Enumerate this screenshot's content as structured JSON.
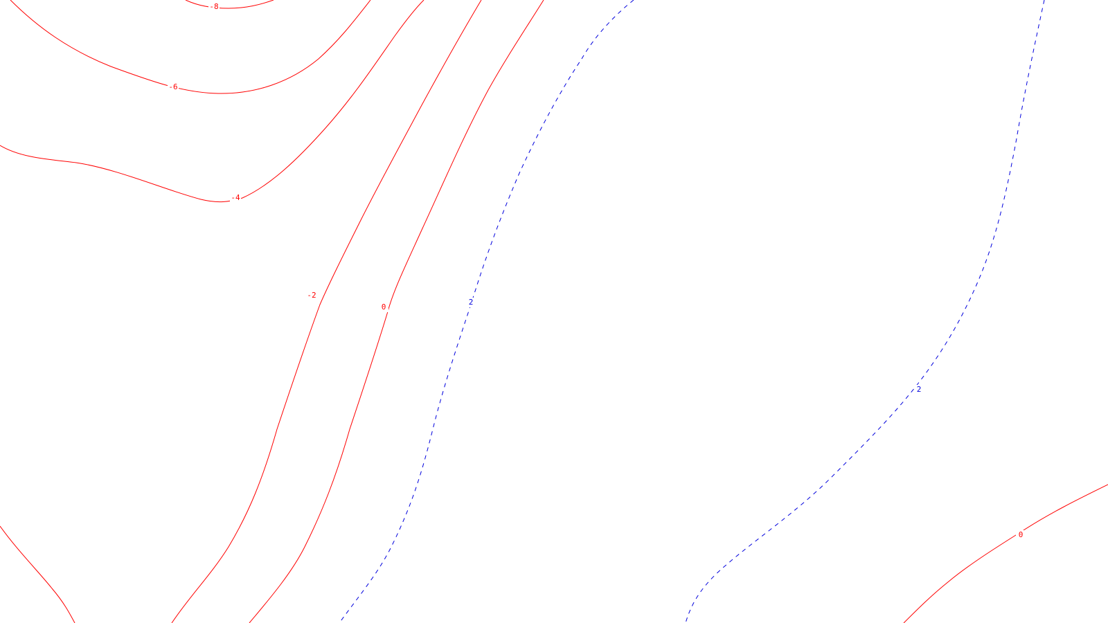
{
  "colors": {
    "negative": "#ff0000",
    "positive": "#0000dd",
    "background": "#ffffff"
  },
  "contours": [
    {
      "id": "neg-8",
      "level": -8,
      "label": "-8",
      "style": "solid",
      "color": "#ff0000"
    },
    {
      "id": "neg-6",
      "level": -6,
      "label": "-6",
      "style": "solid",
      "color": "#ff0000"
    },
    {
      "id": "neg-4",
      "level": -4,
      "label": "-4",
      "style": "solid",
      "color": "#ff0000"
    },
    {
      "id": "neg-2",
      "level": -2,
      "label": "-2",
      "style": "solid",
      "color": "#ff0000"
    },
    {
      "id": "zero-west",
      "level": 0,
      "label": "0",
      "style": "solid",
      "color": "#ff0000"
    },
    {
      "id": "pos-2-west",
      "level": 2,
      "label": "2",
      "style": "dashed",
      "color": "#0000dd"
    },
    {
      "id": "pos-2-east",
      "level": 2,
      "label": "2",
      "style": "dashed",
      "color": "#0000dd"
    },
    {
      "id": "zero-southeast",
      "level": 0,
      "label": "0",
      "style": "solid",
      "color": "#ff0000"
    },
    {
      "id": "neg-southwest",
      "level": null,
      "label": "",
      "style": "solid",
      "color": "#ff0000"
    }
  ]
}
